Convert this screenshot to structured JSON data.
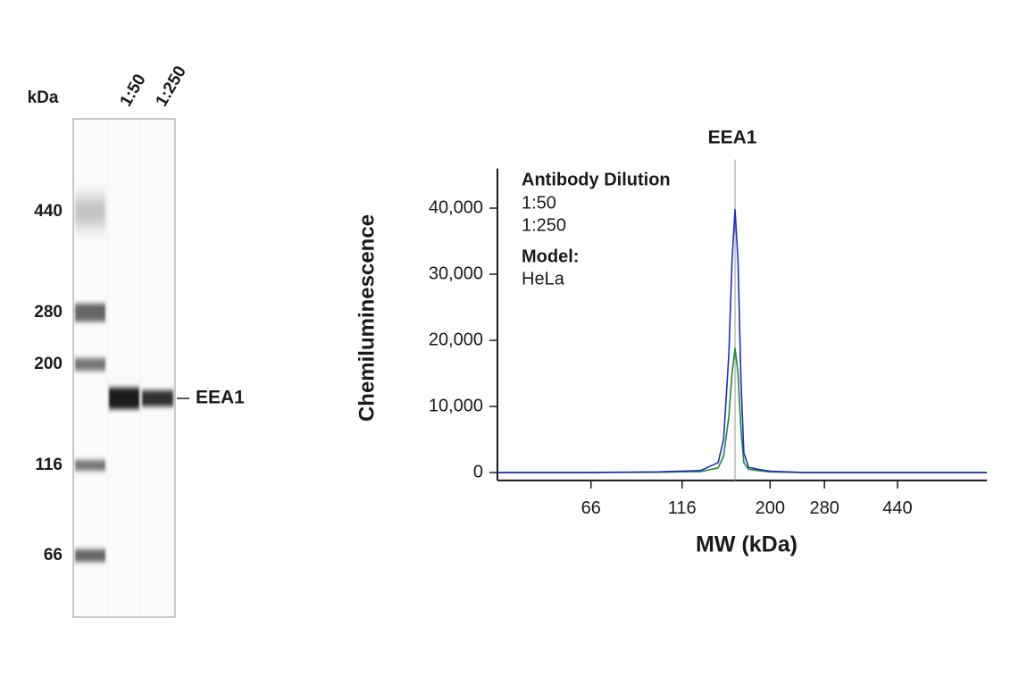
{
  "gel": {
    "unit_label": "kDa",
    "lanes": [
      "1:50",
      "1:250"
    ],
    "ladder": [
      440,
      280,
      200,
      116,
      66
    ],
    "band_label": "EEA1"
  },
  "chart_data": {
    "type": "line",
    "title": "EEA1",
    "peak_marker": 161,
    "ylabel": "Chemiluminescence",
    "xlabel": "MW (kDa)",
    "legend_title": "Antibody Dilution",
    "model_label": "Model:",
    "model": "HeLa",
    "x": [
      37,
      60,
      100,
      130,
      145,
      150,
      155,
      158,
      161,
      164,
      167,
      170,
      175,
      185,
      200,
      250,
      400,
      765
    ],
    "series": [
      {
        "name": "1:50",
        "color": "#1f2fb8",
        "values": [
          0,
          0,
          100,
          300,
          1500,
          5000,
          18000,
          32000,
          39800,
          32000,
          14000,
          3000,
          800,
          500,
          200,
          0,
          0,
          0
        ]
      },
      {
        "name": "1:250",
        "color": "#1e8a3c",
        "values": [
          0,
          0,
          50,
          150,
          700,
          2500,
          8500,
          15000,
          18800,
          15000,
          6500,
          1500,
          500,
          300,
          100,
          0,
          0,
          0
        ]
      }
    ],
    "xscale": "log",
    "xlim": [
      37,
      765
    ],
    "xticks": [
      66,
      116,
      200,
      280,
      440
    ],
    "ylim": [
      -1200,
      46000
    ],
    "yticks": [
      0,
      {
        "value": 10000,
        "label": "10,000"
      },
      {
        "value": 20000,
        "label": "20,000"
      },
      {
        "value": 30000,
        "label": "30,000"
      },
      {
        "value": 40000,
        "label": "40,000"
      }
    ]
  }
}
